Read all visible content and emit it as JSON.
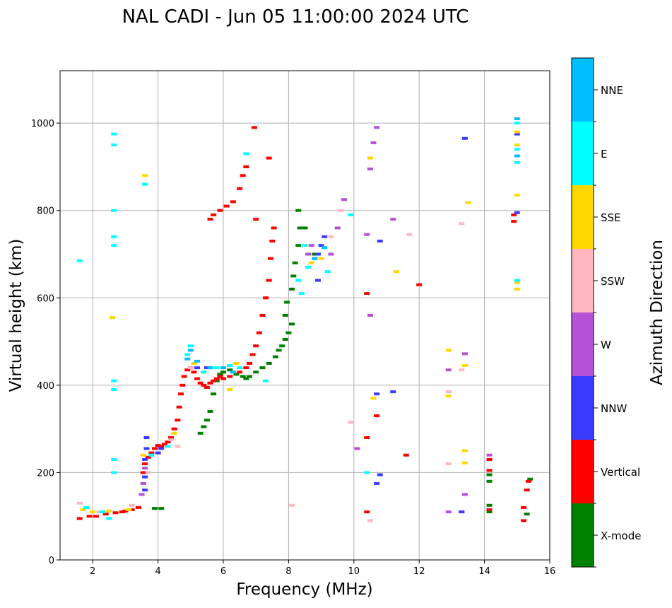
{
  "chart_data": {
    "type": "scatter",
    "title": "NAL CADI - Jun 05 11:00:00 2024 UTC",
    "xlabel": "Frequency (MHz)",
    "ylabel": "Virtual height (km)",
    "xlim": [
      1,
      16
    ],
    "ylim": [
      0,
      1120
    ],
    "xticks": [
      2,
      4,
      6,
      8,
      10,
      12,
      14,
      16
    ],
    "yticks": [
      0,
      200,
      400,
      600,
      800,
      1000
    ],
    "grid": true,
    "colorbar": {
      "label": "Azimuth Direction",
      "categories": [
        {
          "name": "X-mode",
          "color": "#008000"
        },
        {
          "name": "Vertical",
          "color": "#ff0000"
        },
        {
          "name": "NNW",
          "color": "#3a3aff"
        },
        {
          "name": "W",
          "color": "#b452d6"
        },
        {
          "name": "SSW",
          "color": "#ffb6c1"
        },
        {
          "name": "SSE",
          "color": "#ffd700"
        },
        {
          "name": "E",
          "color": "#00ffff"
        },
        {
          "name": "NNE",
          "color": "#00bfff"
        }
      ]
    },
    "series": [
      {
        "name": "X-mode",
        "points": [
          [
            3.9,
            118
          ],
          [
            4.1,
            118
          ],
          [
            5.3,
            290
          ],
          [
            5.4,
            305
          ],
          [
            5.5,
            320
          ],
          [
            5.6,
            340
          ],
          [
            5.7,
            380
          ],
          [
            5.8,
            410
          ],
          [
            5.9,
            425
          ],
          [
            6.0,
            430
          ],
          [
            6.2,
            435
          ],
          [
            6.4,
            425
          ],
          [
            6.6,
            420
          ],
          [
            6.7,
            415
          ],
          [
            6.8,
            420
          ],
          [
            7.0,
            430
          ],
          [
            7.2,
            440
          ],
          [
            7.4,
            450
          ],
          [
            7.6,
            465
          ],
          [
            7.7,
            480
          ],
          [
            7.8,
            490
          ],
          [
            7.9,
            505
          ],
          [
            8.0,
            520
          ],
          [
            8.1,
            540
          ],
          [
            7.9,
            560
          ],
          [
            7.95,
            590
          ],
          [
            8.1,
            620
          ],
          [
            8.15,
            650
          ],
          [
            8.2,
            680
          ],
          [
            8.3,
            720
          ],
          [
            8.35,
            760
          ],
          [
            8.3,
            800
          ],
          [
            8.5,
            760
          ],
          [
            8.8,
            700
          ],
          [
            14.15,
            110
          ],
          [
            14.15,
            125
          ],
          [
            14.15,
            180
          ],
          [
            14.15,
            195
          ],
          [
            15.3,
            105
          ],
          [
            15.4,
            185
          ]
        ]
      },
      {
        "name": "Vertical",
        "points": [
          [
            1.6,
            95
          ],
          [
            1.9,
            100
          ],
          [
            2.1,
            100
          ],
          [
            2.4,
            105
          ],
          [
            2.7,
            108
          ],
          [
            2.9,
            110
          ],
          [
            3.0,
            112
          ],
          [
            3.2,
            115
          ],
          [
            3.4,
            120
          ],
          [
            3.55,
            200
          ],
          [
            3.6,
            220
          ],
          [
            3.7,
            235
          ],
          [
            3.8,
            245
          ],
          [
            3.9,
            255
          ],
          [
            4.0,
            262
          ],
          [
            4.1,
            260
          ],
          [
            4.2,
            265
          ],
          [
            4.3,
            270
          ],
          [
            4.4,
            280
          ],
          [
            4.5,
            300
          ],
          [
            4.6,
            320
          ],
          [
            4.65,
            350
          ],
          [
            4.7,
            380
          ],
          [
            4.75,
            400
          ],
          [
            4.8,
            420
          ],
          [
            4.9,
            435
          ],
          [
            5.0,
            440
          ],
          [
            5.1,
            430
          ],
          [
            5.2,
            415
          ],
          [
            5.3,
            405
          ],
          [
            5.4,
            400
          ],
          [
            5.5,
            395
          ],
          [
            5.6,
            405
          ],
          [
            5.7,
            410
          ],
          [
            5.8,
            415
          ],
          [
            5.9,
            420
          ],
          [
            6.0,
            415
          ],
          [
            6.2,
            420
          ],
          [
            6.3,
            430
          ],
          [
            6.5,
            430
          ],
          [
            6.7,
            440
          ],
          [
            6.8,
            450
          ],
          [
            6.9,
            470
          ],
          [
            7.0,
            490
          ],
          [
            7.1,
            520
          ],
          [
            7.2,
            560
          ],
          [
            7.3,
            600
          ],
          [
            7.4,
            640
          ],
          [
            7.45,
            690
          ],
          [
            7.5,
            730
          ],
          [
            7.55,
            760
          ],
          [
            5.6,
            780
          ],
          [
            5.7,
            790
          ],
          [
            5.9,
            800
          ],
          [
            6.1,
            810
          ],
          [
            6.3,
            820
          ],
          [
            6.5,
            850
          ],
          [
            6.6,
            880
          ],
          [
            6.7,
            900
          ],
          [
            6.95,
            990
          ],
          [
            7.0,
            780
          ],
          [
            7.4,
            920
          ],
          [
            10.4,
            110
          ],
          [
            10.4,
            280
          ],
          [
            10.4,
            610
          ],
          [
            10.7,
            330
          ],
          [
            11.6,
            240
          ],
          [
            12.0,
            630
          ],
          [
            13.3,
            110
          ],
          [
            14.15,
            115
          ],
          [
            14.15,
            205
          ],
          [
            14.15,
            230
          ],
          [
            15.2,
            90
          ],
          [
            15.2,
            120
          ],
          [
            15.3,
            160
          ],
          [
            15.35,
            180
          ],
          [
            14.9,
            775
          ],
          [
            14.9,
            790
          ]
        ]
      },
      {
        "name": "NNW",
        "points": [
          [
            3.6,
            160
          ],
          [
            3.6,
            190
          ],
          [
            3.6,
            230
          ],
          [
            3.65,
            255
          ],
          [
            3.65,
            280
          ],
          [
            4.0,
            245
          ],
          [
            4.1,
            255
          ],
          [
            5.2,
            440
          ],
          [
            5.5,
            440
          ],
          [
            8.9,
            700
          ],
          [
            9.0,
            720
          ],
          [
            8.8,
            690
          ],
          [
            9.1,
            740
          ],
          [
            8.9,
            640
          ],
          [
            10.7,
            380
          ],
          [
            11.2,
            385
          ],
          [
            10.8,
            730
          ],
          [
            10.7,
            175
          ],
          [
            10.8,
            195
          ],
          [
            13.4,
            965
          ],
          [
            13.3,
            110
          ],
          [
            15.0,
            795
          ],
          [
            15.0,
            975
          ]
        ]
      },
      {
        "name": "W",
        "points": [
          [
            3.5,
            150
          ],
          [
            3.55,
            175
          ],
          [
            3.6,
            210
          ],
          [
            8.6,
            700
          ],
          [
            8.7,
            720
          ],
          [
            9.3,
            700
          ],
          [
            9.5,
            760
          ],
          [
            9.7,
            825
          ],
          [
            10.4,
            745
          ],
          [
            10.5,
            560
          ],
          [
            10.6,
            955
          ],
          [
            10.7,
            990
          ],
          [
            11.2,
            780
          ],
          [
            10.1,
            255
          ],
          [
            12.9,
            435
          ],
          [
            12.9,
            110
          ],
          [
            13.4,
            150
          ],
          [
            13.4,
            472
          ],
          [
            14.15,
            240
          ],
          [
            10.5,
            895
          ]
        ]
      },
      {
        "name": "SSW",
        "points": [
          [
            1.6,
            130
          ],
          [
            2.2,
            110
          ],
          [
            3.2,
            125
          ],
          [
            3.7,
            200
          ],
          [
            4.4,
            275
          ],
          [
            4.6,
            260
          ],
          [
            5.0,
            440
          ],
          [
            9.3,
            740
          ],
          [
            9.6,
            800
          ],
          [
            9.9,
            315
          ],
          [
            10.5,
            90
          ],
          [
            8.1,
            125
          ],
          [
            12.9,
            220
          ],
          [
            12.9,
            385
          ],
          [
            13.3,
            770
          ],
          [
            13.3,
            435
          ],
          [
            11.7,
            745
          ]
        ]
      },
      {
        "name": "SSE",
        "points": [
          [
            1.7,
            115
          ],
          [
            2.0,
            110
          ],
          [
            2.5,
            112
          ],
          [
            2.6,
            555
          ],
          [
            3.1,
            115
          ],
          [
            3.55,
            240
          ],
          [
            3.6,
            880
          ],
          [
            4.5,
            290
          ],
          [
            5.1,
            450
          ],
          [
            6.2,
            390
          ],
          [
            6.4,
            450
          ],
          [
            8.7,
            680
          ],
          [
            9.0,
            690
          ],
          [
            10.5,
            920
          ],
          [
            10.6,
            370
          ],
          [
            11.3,
            660
          ],
          [
            12.9,
            480
          ],
          [
            12.9,
            375
          ],
          [
            13.4,
            445
          ],
          [
            13.4,
            250
          ],
          [
            13.4,
            222
          ],
          [
            13.5,
            818
          ],
          [
            15.0,
            620
          ],
          [
            15.0,
            635
          ],
          [
            15.0,
            835
          ],
          [
            15.0,
            950
          ],
          [
            15.0,
            980
          ]
        ]
      },
      {
        "name": "E",
        "points": [
          [
            1.6,
            685
          ],
          [
            1.8,
            120
          ],
          [
            2.3,
            110
          ],
          [
            2.5,
            95
          ],
          [
            2.65,
            200
          ],
          [
            2.65,
            230
          ],
          [
            2.65,
            390
          ],
          [
            2.65,
            410
          ],
          [
            2.65,
            720
          ],
          [
            2.65,
            740
          ],
          [
            2.65,
            800
          ],
          [
            2.65,
            950
          ],
          [
            2.65,
            975
          ],
          [
            3.6,
            860
          ],
          [
            3.8,
            240
          ],
          [
            4.3,
            260
          ],
          [
            4.9,
            470
          ],
          [
            5.0,
            490
          ],
          [
            5.4,
            430
          ],
          [
            5.8,
            440
          ],
          [
            6.2,
            445
          ],
          [
            6.5,
            440
          ],
          [
            6.7,
            930
          ],
          [
            7.3,
            410
          ],
          [
            8.3,
            640
          ],
          [
            8.4,
            610
          ],
          [
            8.5,
            720
          ],
          [
            8.6,
            670
          ],
          [
            9.2,
            660
          ],
          [
            9.9,
            790
          ],
          [
            10.4,
            200
          ],
          [
            15.0,
            640
          ],
          [
            15.0,
            910
          ],
          [
            15.0,
            940
          ],
          [
            15.0,
            1000
          ]
        ]
      },
      {
        "name": "NNE",
        "points": [
          [
            4.9,
            460
          ],
          [
            5.0,
            480
          ],
          [
            5.2,
            455
          ],
          [
            5.6,
            440
          ],
          [
            6.0,
            440
          ],
          [
            6.3,
            430
          ],
          [
            8.8,
            690
          ],
          [
            9.1,
            715
          ],
          [
            15.0,
            1010
          ],
          [
            15.0,
            925
          ]
        ]
      }
    ]
  }
}
